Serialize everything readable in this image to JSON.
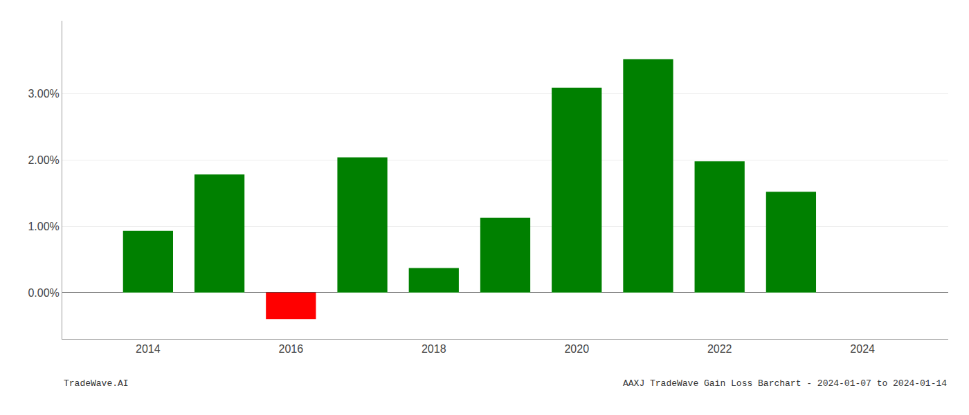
{
  "chart_data": {
    "type": "bar",
    "x": [
      2014,
      2015,
      2016,
      2017,
      2018,
      2019,
      2020,
      2021,
      2022,
      2023
    ],
    "values": [
      0.0093,
      0.0178,
      -0.004,
      0.0204,
      0.0037,
      0.0113,
      0.0309,
      0.0352,
      0.0198,
      0.0152
    ],
    "colors": [
      "#008000",
      "#008000",
      "#ff0000",
      "#008000",
      "#008000",
      "#008000",
      "#008000",
      "#008000",
      "#008000",
      "#008000"
    ],
    "xlim": [
      2012.8,
      2025.2
    ],
    "xticks": [
      2014,
      2016,
      2018,
      2020,
      2022,
      2024
    ],
    "ylim": [
      -0.007,
      0.041
    ],
    "yticks": [
      {
        "value": 0.0,
        "label": "0.00%"
      },
      {
        "value": 0.01,
        "label": "1.00%"
      },
      {
        "value": 0.02,
        "label": "2.00%"
      },
      {
        "value": 0.03,
        "label": "3.00%"
      }
    ],
    "grid": "y",
    "annotations": [
      "TradeWave.AI",
      "AAXJ TradeWave Gain Loss Barchart - 2024-01-07 to 2024-01-14"
    ]
  }
}
